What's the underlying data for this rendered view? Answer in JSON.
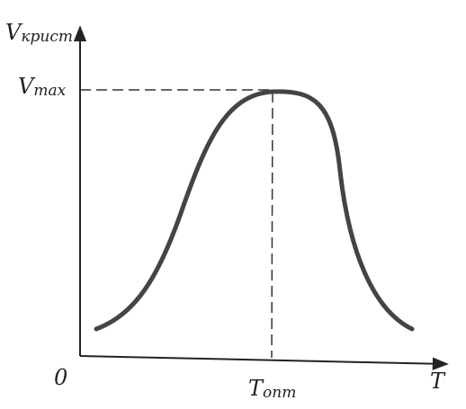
{
  "y_axis_label": {
    "symbol": "V",
    "subscript": "крист"
  },
  "peak_label": {
    "symbol": "V",
    "subscript": "max"
  },
  "origin_label": "0",
  "x_axis_label": "T",
  "optimum_label": {
    "symbol": "T",
    "subscript": "опт"
  }
}
